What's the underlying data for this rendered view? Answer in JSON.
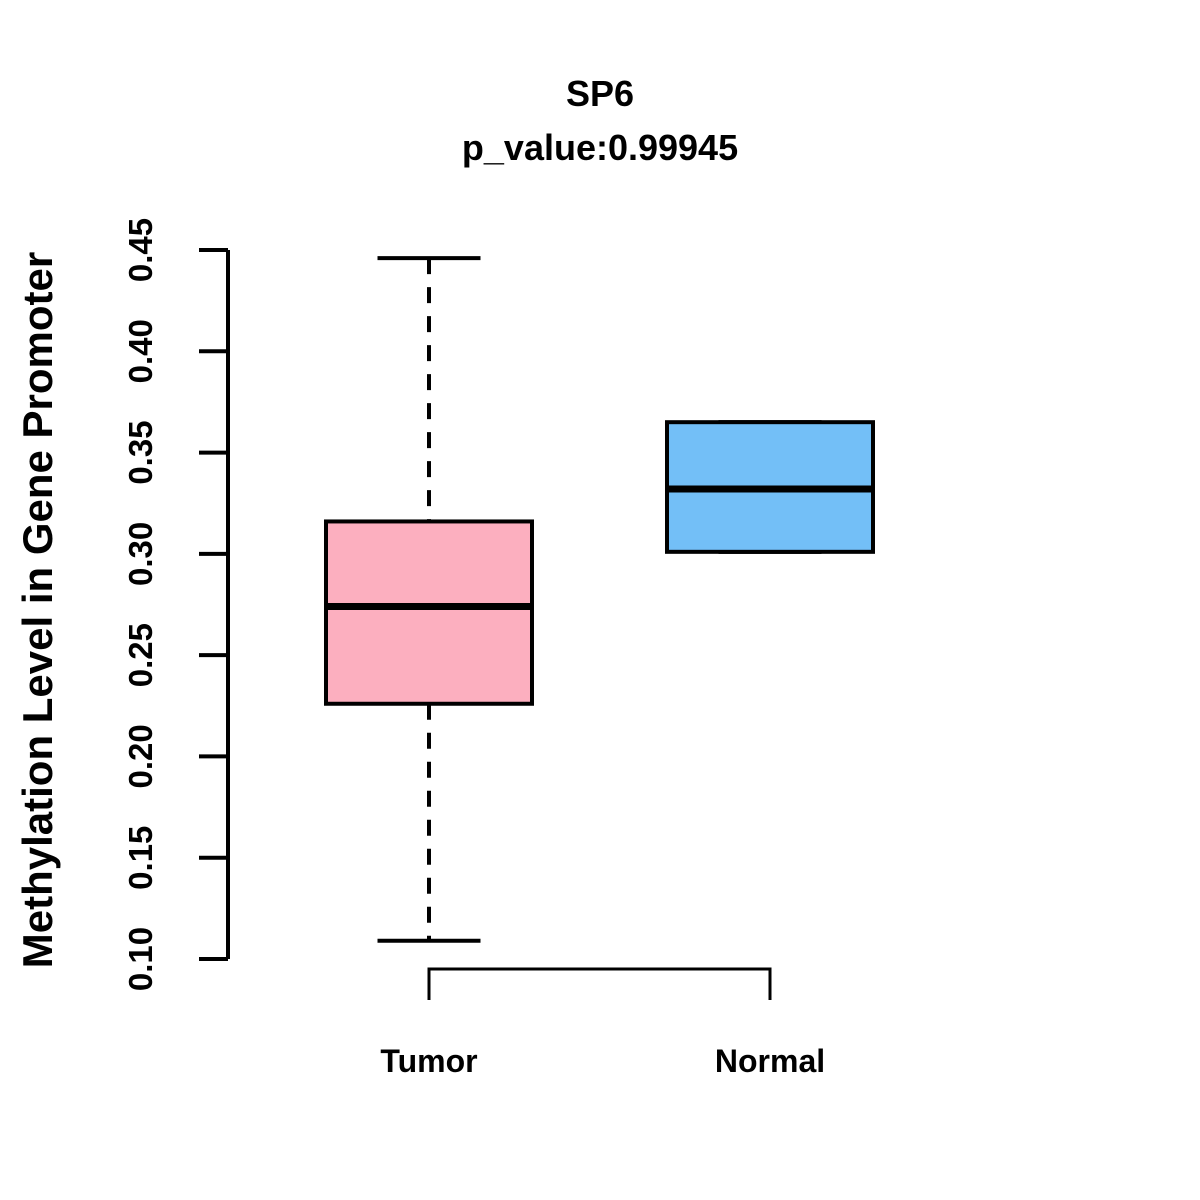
{
  "chart_data": {
    "type": "boxplot",
    "title": "SP6",
    "subtitle": "p_value:0.99945",
    "ylabel": "Methylation Level in Gene Promoter",
    "xlabel": "",
    "categories": [
      "Tumor",
      "Normal"
    ],
    "series": [
      {
        "name": "Tumor",
        "fill": "#FCAFBF",
        "whisker_low": 0.109,
        "q1": 0.226,
        "median": 0.274,
        "q3": 0.316,
        "whisker_high": 0.446,
        "whisker_style": "dashed"
      },
      {
        "name": "Normal",
        "fill": "#73BFF7",
        "whisker_low": 0.301,
        "q1": 0.301,
        "median": 0.332,
        "q3": 0.365,
        "whisker_high": 0.365,
        "whisker_style": "dashed"
      }
    ],
    "ylim": [
      0.1,
      0.45
    ],
    "yticks": [
      0.1,
      0.15,
      0.2,
      0.25,
      0.3,
      0.35,
      0.4,
      0.45
    ],
    "ytick_labels": [
      "0.10",
      "0.15",
      "0.20",
      "0.25",
      "0.30",
      "0.35",
      "0.40",
      "0.45"
    ],
    "grid": false,
    "legend": "none",
    "bracket": {
      "from": "Tumor",
      "to": "Normal"
    },
    "colors": {
      "stroke": "#000000",
      "background": "#FFFFFF",
      "tumor_fill": "#FCAFBF",
      "normal_fill": "#73BFF7"
    }
  }
}
